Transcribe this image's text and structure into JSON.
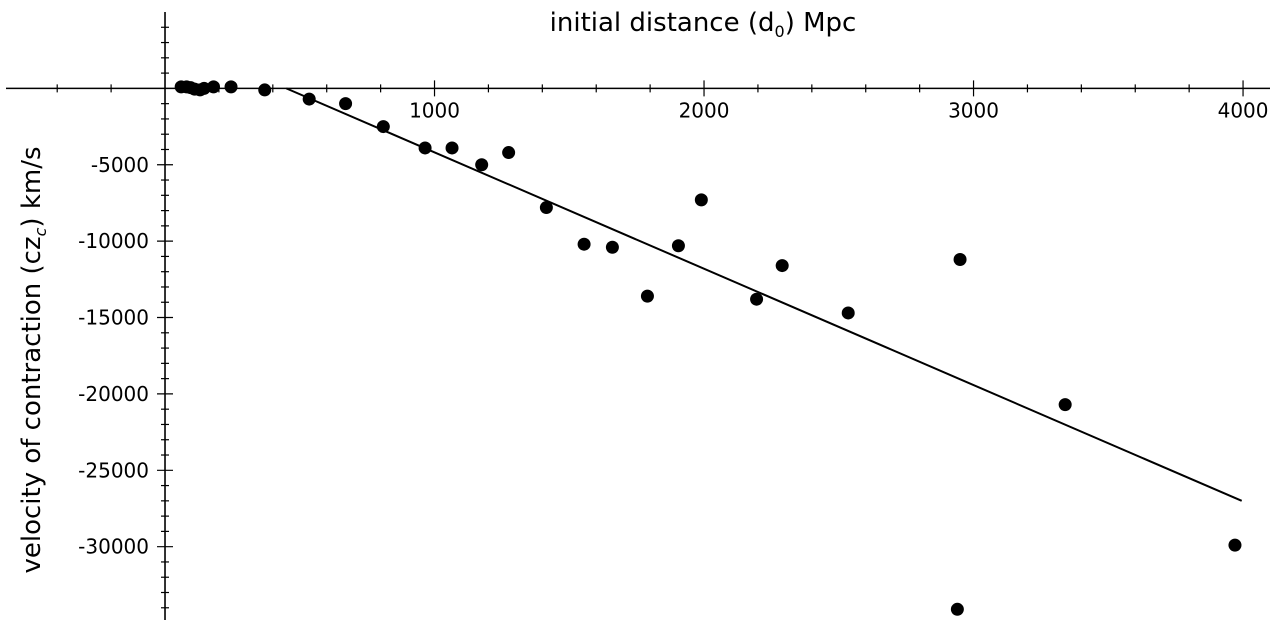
{
  "chart_data": {
    "type": "scatter",
    "xlabel_main": "initial distance (d",
    "xlabel_sub": "0",
    "xlabel_tail": ")  Mpc",
    "ylabel_main": "velocity of contraction (cz",
    "ylabel_sub": "c",
    "ylabel_tail": ") km/s",
    "xlim": [
      -590,
      4100
    ],
    "ylim": [
      -34800,
      5000
    ],
    "x_ticks": [
      1000,
      2000,
      3000,
      4000
    ],
    "y_ticks": [
      -5000,
      -10000,
      -15000,
      -20000,
      -25000,
      -30000
    ],
    "grid": false,
    "series": [
      {
        "kind": "points",
        "color": "#000000",
        "x": [
          60,
          80,
          95,
          110,
          130,
          145,
          180,
          245,
          370,
          535,
          670,
          810,
          965,
          1065,
          1175,
          1275,
          1415,
          1555,
          1660,
          1790,
          1905,
          1990,
          2195,
          2290,
          2535,
          2940,
          2950,
          3340,
          3970
        ],
        "y": [
          100,
          100,
          50,
          -50,
          -100,
          0,
          100,
          100,
          -100,
          -700,
          -1000,
          -2500,
          -3900,
          -3900,
          -5000,
          -4200,
          -7800,
          -10200,
          -10400,
          -13600,
          -10300,
          -7300,
          -13800,
          -11600,
          -14700,
          -34100,
          -11200,
          -20700,
          -29900
        ]
      },
      {
        "kind": "line",
        "color": "#000000",
        "x": [
          450,
          3995
        ],
        "y": [
          0,
          -27000
        ]
      }
    ]
  }
}
